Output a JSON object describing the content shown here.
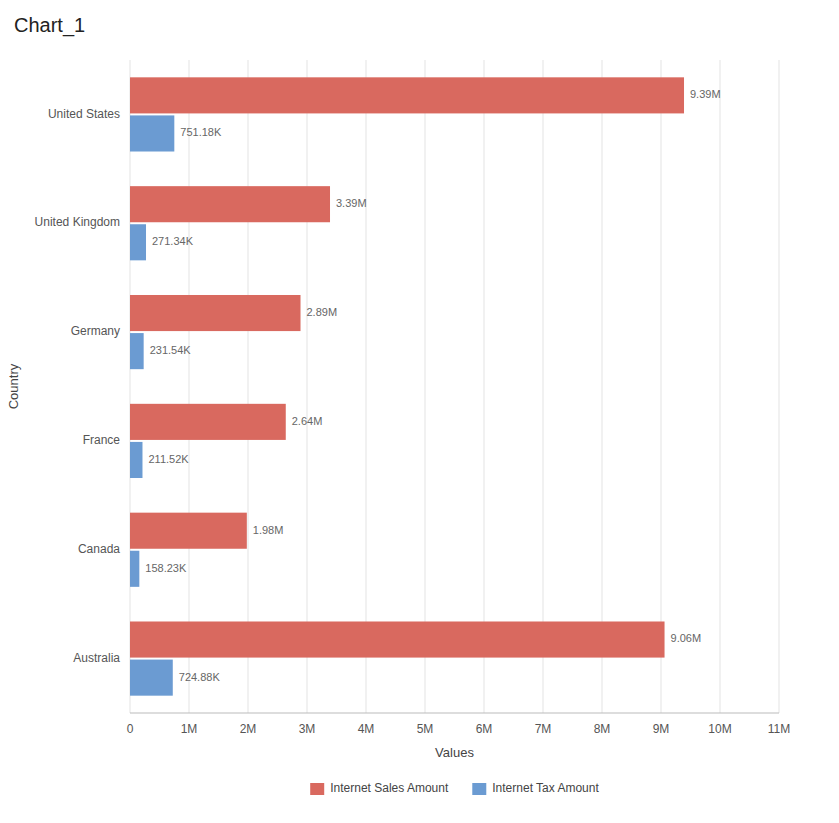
{
  "chart_data": {
    "type": "bar",
    "orientation": "horizontal",
    "title": "Chart_1",
    "x_label": "Values",
    "y_label": "Country",
    "categories": [
      "United States",
      "United Kingdom",
      "Germany",
      "France",
      "Canada",
      "Australia"
    ],
    "series": [
      {
        "name": "Internet Sales Amount",
        "color": "#d9695f",
        "values": [
          9390000,
          3390000,
          2890000,
          2640000,
          1980000,
          9060000
        ],
        "value_labels": [
          "9.39M",
          "3.39M",
          "2.89M",
          "2.64M",
          "1.98M",
          "9.06M"
        ]
      },
      {
        "name": "Internet Tax Amount",
        "color": "#6b9bd2",
        "values": [
          751180,
          271340,
          231540,
          211520,
          158230,
          724880
        ],
        "value_labels": [
          "751.18K",
          "271.34K",
          "231.54K",
          "211.52K",
          "158.23K",
          "724.88K"
        ]
      }
    ],
    "xlim": [
      0,
      11000000
    ],
    "xticks": [
      0,
      {
        "value": 1000000,
        "label": "1M"
      },
      {
        "value": 2000000,
        "label": "2M"
      },
      {
        "value": 3000000,
        "label": "3M"
      },
      {
        "value": 4000000,
        "label": "4M"
      },
      {
        "value": 5000000,
        "label": "5M"
      },
      {
        "value": 6000000,
        "label": "6M"
      },
      {
        "value": 7000000,
        "label": "7M"
      },
      {
        "value": 8000000,
        "label": "8M"
      },
      {
        "value": 9000000,
        "label": "9M"
      },
      {
        "value": 10000000,
        "label": "10M"
      },
      {
        "value": 11000000,
        "label": "11M"
      }
    ],
    "grid": true,
    "legend": "bottom",
    "data_labels": true
  }
}
